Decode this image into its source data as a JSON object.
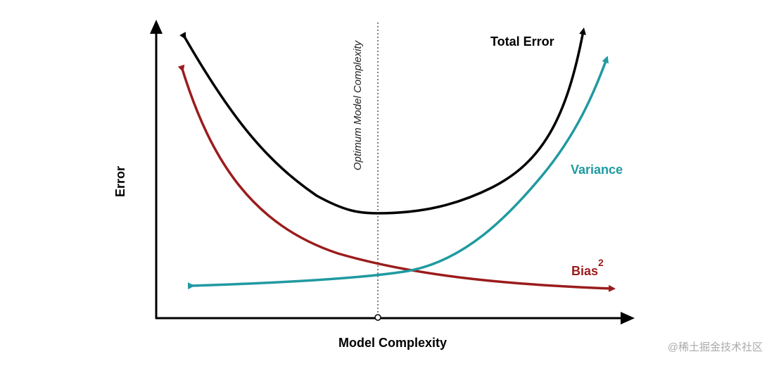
{
  "axes": {
    "y_label": "Error",
    "x_label": "Model Complexity"
  },
  "optimum_label": "Optimum Model Complexity",
  "curves": {
    "total_error": "Total Error",
    "variance": "Variance",
    "bias": {
      "label": "Bias",
      "superscript": "2"
    }
  },
  "watermark": "@稀土掘金技术社区"
}
